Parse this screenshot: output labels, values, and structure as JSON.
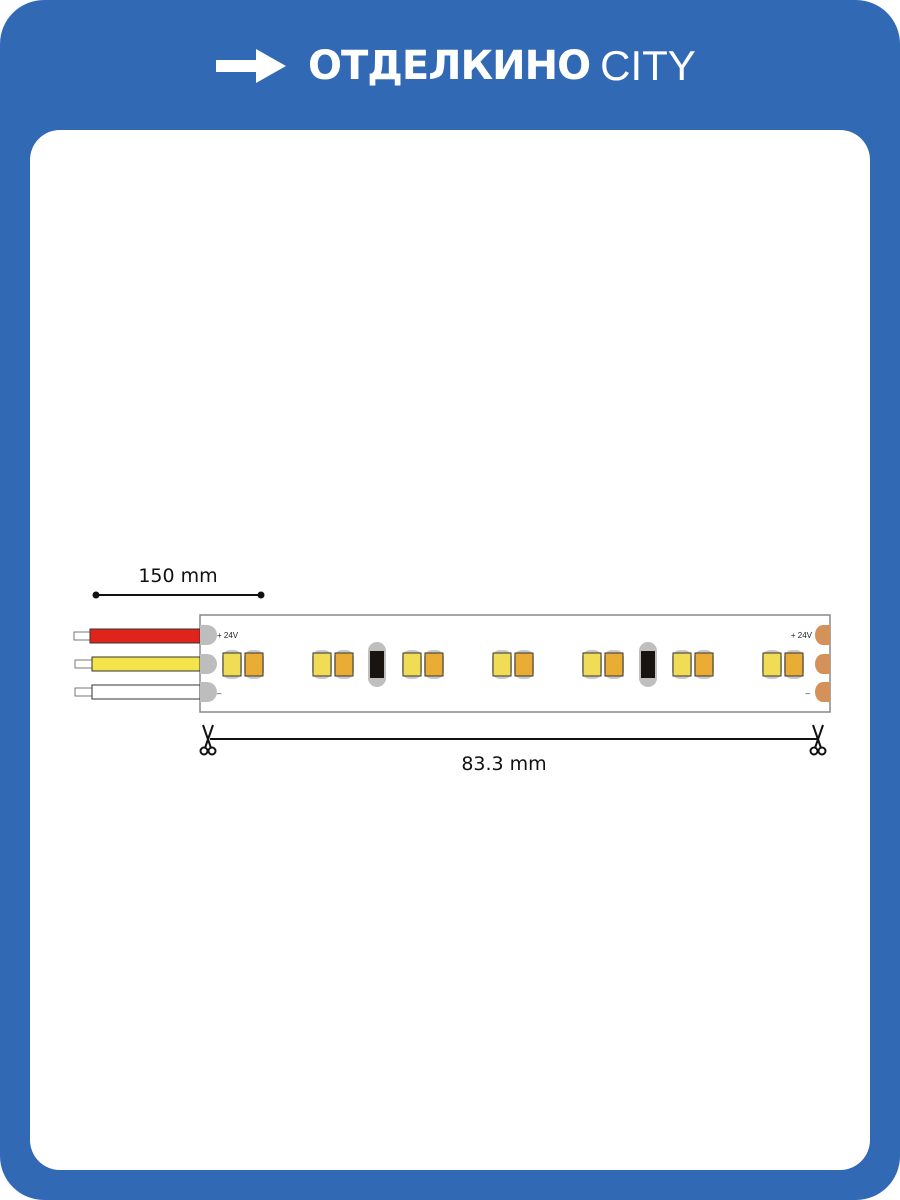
{
  "brand": {
    "name_bold": "ОТДЕЛКИНО",
    "name_light": "CITY",
    "icon": "arrow-right-icon"
  },
  "colors": {
    "frame": "#3169b5",
    "wire_positive": "#e0241c",
    "wire_middle": "#f2e44a",
    "wire_negative": "#ffffff",
    "led_cool": "#f0dc55",
    "led_warm": "#e9ac35",
    "pad_left": "#bdbdbd",
    "pad_right": "#d4915a"
  },
  "diagram": {
    "wire_length_label": "150 mm",
    "cut_length_label": "83.3 mm",
    "pad_plus_label": "+ 24V",
    "pad_minus_label": "–",
    "led_pairs": 7,
    "resistors_after_pairs": [
      2,
      5
    ],
    "cut_icon": "scissors-icon"
  }
}
